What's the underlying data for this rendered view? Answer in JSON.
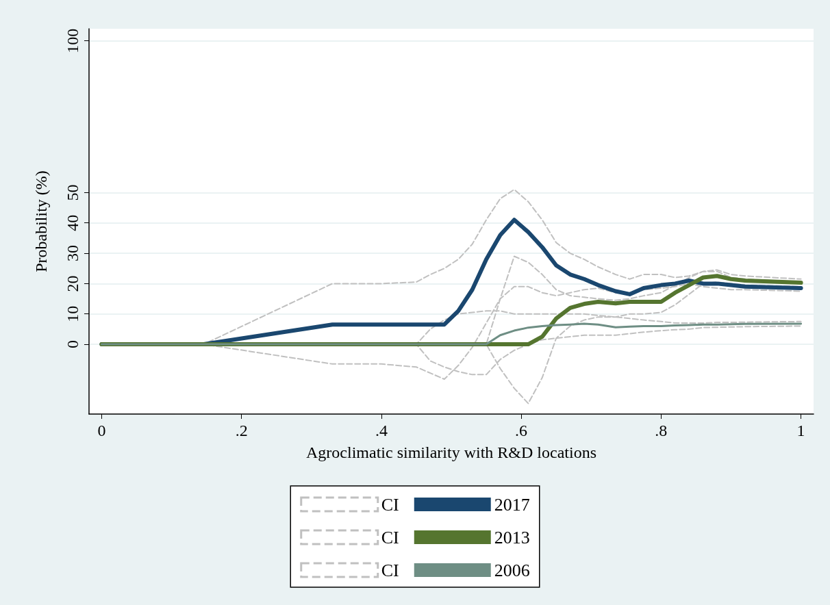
{
  "chart_data": {
    "type": "line",
    "xlabel": "Agroclimatic similarity with R&D locations",
    "ylabel": "Probability (%)",
    "x": [
      0,
      0.146,
      0.33,
      0.4,
      0.45,
      0.47,
      0.49,
      0.51,
      0.53,
      0.55,
      0.57,
      0.59,
      0.61,
      0.63,
      0.65,
      0.67,
      0.69,
      0.71,
      0.735,
      0.755,
      0.775,
      0.8,
      0.82,
      0.84,
      0.86,
      0.88,
      0.9,
      0.92,
      1
    ],
    "xlim": [
      -0.018,
      1.018
    ],
    "xticks": [
      0,
      {
        "value": 0.2,
        "label": ".2"
      },
      {
        "value": 0.4,
        "label": ".4"
      },
      {
        "value": 0.6,
        "label": ".6"
      },
      {
        "value": 0.8,
        "label": ".8"
      },
      1
    ],
    "ylim": [
      -23,
      104
    ],
    "yticks": [
      0,
      10,
      20,
      30,
      40,
      50,
      100
    ],
    "grid": "y",
    "legend": "bottom",
    "marker": "none",
    "series": [
      {
        "name": "CI",
        "color": "#c0c0c0",
        "line_style": "dashed",
        "values": [
          0,
          0,
          20,
          20,
          20.5,
          23,
          25,
          28,
          33,
          41,
          48,
          51,
          47,
          41,
          33.5,
          30,
          28,
          25.5,
          23,
          21.5,
          23,
          23,
          22,
          22.5,
          24,
          24,
          22,
          21.5,
          20.5
        ]
      },
      {
        "color": "#c0c0c0",
        "line_style": "dashed",
        "values": [
          0,
          0,
          -6.5,
          -6.5,
          -7.5,
          -9.5,
          -11.5,
          -7,
          -1,
          7,
          15,
          19,
          19,
          17,
          16,
          17,
          18,
          18.5,
          17,
          17,
          18,
          18.5,
          19,
          20,
          19,
          18.5,
          18,
          18,
          17.5
        ]
      },
      {
        "name": "2017",
        "color": "#1a476f",
        "line_style": "solid",
        "values": [
          0,
          0,
          6.5,
          6.5,
          6.5,
          6.5,
          6.5,
          11,
          18,
          28,
          36,
          41,
          37,
          32,
          26,
          23,
          21.5,
          19.5,
          17.5,
          16.5,
          18.5,
          19.5,
          20,
          21,
          20,
          20,
          19.5,
          19,
          18.5
        ]
      },
      {
        "name": "CI",
        "color": "#c0c0c0",
        "line_style": "dashed",
        "values": [
          0,
          0,
          0,
          0,
          0,
          0,
          0,
          0,
          0,
          0,
          15,
          29,
          27,
          23,
          18,
          16,
          15.5,
          15,
          14.5,
          15,
          16,
          17,
          19.5,
          22,
          24,
          24.5,
          23,
          22.5,
          21.5
        ]
      },
      {
        "color": "#c0c0c0",
        "line_style": "dashed",
        "values": [
          0,
          0,
          0,
          0,
          0,
          0,
          0,
          0,
          0,
          0,
          -8,
          -14.5,
          -19.5,
          -11,
          2,
          6,
          8,
          9,
          9,
          10,
          10,
          10.5,
          13,
          16.5,
          20,
          20.5,
          20,
          19.5,
          19
        ]
      },
      {
        "name": "2013",
        "color": "#55752f",
        "line_style": "solid",
        "values": [
          0,
          0,
          0,
          0,
          0,
          0,
          0,
          0,
          0,
          0,
          0,
          0,
          0,
          2.5,
          8.5,
          12,
          13.3,
          14,
          13.5,
          14,
          14,
          14,
          17,
          19.5,
          22,
          22.5,
          21.5,
          21,
          20.3
        ]
      },
      {
        "name": "CI",
        "color": "#c0c0c0",
        "line_style": "dashed",
        "values": [
          0,
          0,
          0,
          0,
          0,
          5,
          8,
          10,
          10.5,
          11,
          11,
          10,
          10,
          10,
          10,
          10,
          10,
          9.5,
          9,
          8.5,
          8,
          7.5,
          7,
          7,
          7,
          7.2,
          7.2,
          7.3,
          7.5
        ]
      },
      {
        "color": "#c0c0c0",
        "line_style": "dashed",
        "values": [
          0,
          0,
          0,
          0,
          0,
          -5.5,
          -7.5,
          -9,
          -10,
          -10,
          -5,
          -2,
          0,
          1.5,
          2,
          2.5,
          3,
          3,
          3,
          3.5,
          4,
          4.5,
          4.8,
          5,
          5.5,
          5.6,
          5.7,
          5.8,
          6
        ]
      },
      {
        "name": "2006",
        "color": "#6e8e84",
        "line_style": "solid",
        "values": [
          0,
          0,
          0,
          0,
          0,
          0,
          0,
          0,
          0,
          0,
          3,
          4.5,
          5.5,
          6,
          6.3,
          6.5,
          6.8,
          6.5,
          5.6,
          5.8,
          6,
          6,
          6.2,
          6.3,
          6.5,
          6.5,
          6.6,
          6.7,
          6.8
        ]
      }
    ]
  }
}
